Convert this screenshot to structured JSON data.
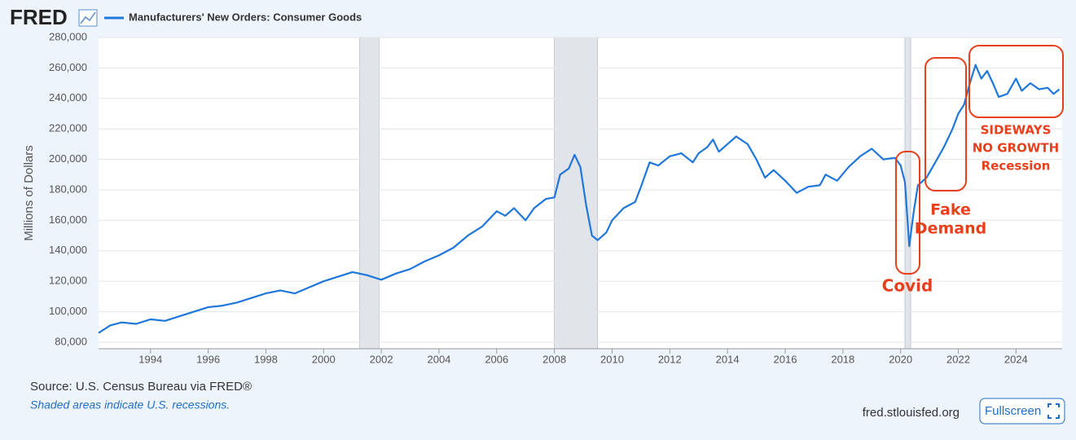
{
  "brand": "FRED",
  "chart_data": {
    "type": "line",
    "title": "Manufacturers' New Orders: Consumer Goods",
    "y_label": "Millions of Dollars",
    "series": [
      {
        "name": "Manufacturers' New Orders: Consumer Goods",
        "color": "#1f77d9",
        "x": [
          1992.2,
          1992.6,
          1993.0,
          1993.5,
          1994.0,
          1994.5,
          1995.0,
          1995.5,
          1996.0,
          1996.5,
          1997.0,
          1997.5,
          1998.0,
          1998.5,
          1999.0,
          1999.5,
          2000.0,
          2000.5,
          2001.0,
          2001.5,
          2002.0,
          2002.5,
          2003.0,
          2003.5,
          2004.0,
          2004.5,
          2005.0,
          2005.5,
          2006.0,
          2006.3,
          2006.6,
          2007.0,
          2007.3,
          2007.7,
          2008.0,
          2008.2,
          2008.5,
          2008.7,
          2008.9,
          2009.1,
          2009.3,
          2009.5,
          2009.8,
          2010.0,
          2010.4,
          2010.8,
          2011.0,
          2011.3,
          2011.6,
          2012.0,
          2012.4,
          2012.8,
          2013.0,
          2013.3,
          2013.5,
          2013.7,
          2014.0,
          2014.3,
          2014.7,
          2015.0,
          2015.3,
          2015.6,
          2016.0,
          2016.4,
          2016.8,
          2017.2,
          2017.4,
          2017.8,
          2018.2,
          2018.6,
          2019.0,
          2019.4,
          2019.8,
          2020.0,
          2020.15,
          2020.3,
          2020.45,
          2020.6,
          2020.9,
          2021.2,
          2021.5,
          2021.8,
          2022.0,
          2022.2,
          2022.4,
          2022.6,
          2022.8,
          2023.0,
          2023.2,
          2023.4,
          2023.7,
          2024.0,
          2024.2,
          2024.5,
          2024.8,
          2025.1,
          2025.3,
          2025.5
        ],
        "values": [
          86000,
          91000,
          93000,
          92000,
          95000,
          94000,
          97000,
          100000,
          103000,
          104000,
          106000,
          109000,
          112000,
          114000,
          112000,
          116000,
          120000,
          123000,
          126000,
          124000,
          121000,
          125000,
          128000,
          133000,
          137000,
          142000,
          150000,
          156000,
          166000,
          163000,
          168000,
          160000,
          168000,
          174000,
          175000,
          190000,
          194000,
          203000,
          195000,
          170000,
          150000,
          147000,
          152000,
          160000,
          168000,
          172000,
          182000,
          198000,
          196000,
          202000,
          204000,
          198000,
          204000,
          208000,
          213000,
          205000,
          210000,
          215000,
          210000,
          200000,
          188000,
          193000,
          186000,
          178000,
          182000,
          183000,
          190000,
          186000,
          195000,
          202000,
          207000,
          200000,
          201000,
          196000,
          185000,
          143000,
          165000,
          183000,
          188000,
          198000,
          208000,
          220000,
          230000,
          236000,
          250000,
          262000,
          253000,
          258000,
          250000,
          241000,
          243000,
          253000,
          245000,
          250000,
          246000,
          247000,
          243000,
          246000
        ]
      }
    ],
    "recessions": [
      [
        2001.25,
        2001.92
      ],
      [
        2008.0,
        2009.5
      ],
      [
        2020.15,
        2020.35
      ]
    ],
    "xlim": [
      1992.2,
      2025.6
    ],
    "xticks": [
      1994,
      1996,
      1998,
      2000,
      2002,
      2004,
      2006,
      2008,
      2010,
      2012,
      2014,
      2016,
      2018,
      2020,
      2022,
      2024
    ],
    "ylim": [
      75700,
      280000
    ],
    "yticks": [
      {
        "value": 80000,
        "label": "80,000"
      },
      {
        "value": 100000,
        "label": "100,000"
      },
      {
        "value": 120000,
        "label": "120,000"
      },
      {
        "value": 140000,
        "label": "140,000"
      },
      {
        "value": 160000,
        "label": "160,000"
      },
      {
        "value": 180000,
        "label": "180,000"
      },
      {
        "value": 200000,
        "label": "200,000"
      },
      {
        "value": 220000,
        "label": "220,000"
      },
      {
        "value": 240000,
        "label": "240,000"
      },
      {
        "value": 260000,
        "label": "260,000"
      },
      {
        "value": 280000,
        "label": "280,000"
      }
    ],
    "grid": true,
    "annotations": [
      [
        "Covid"
      ],
      [
        "Fake",
        "Demand"
      ],
      [
        "SIDEWAYS",
        "NO GROWTH",
        "Recession"
      ]
    ]
  },
  "footer": {
    "source": "Source: U.S. Census Bureau via FRED®",
    "note": "Shaded areas indicate U.S. recessions.",
    "site": "fred.stlouisfed.org",
    "button": "Fullscreen"
  }
}
